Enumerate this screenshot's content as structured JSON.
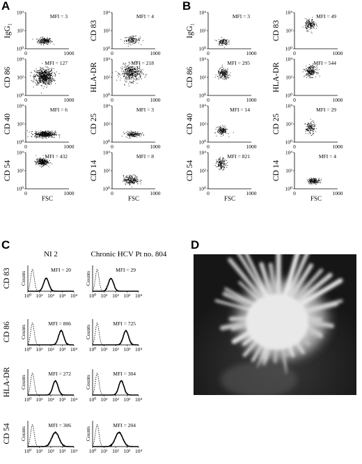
{
  "panel_labels": [
    "A",
    "B",
    "C",
    "D"
  ],
  "chart_data": [
    {
      "type": "scatter",
      "panel": "A",
      "x_ticks": [
        "0",
        "1000"
      ],
      "y_ticks": [
        "10⁰",
        "10²",
        "10⁴"
      ],
      "x_range": [
        0,
        1000
      ],
      "y_range_log10": [
        0,
        4
      ],
      "xlabel": "FSC",
      "subplots": [
        {
          "ylabel": "IgG₁",
          "mfi": "MFI = 3",
          "cloud": {
            "cx": 430,
            "cy": 0.9,
            "sx": 80,
            "sy": 0.18,
            "n": 200
          }
        },
        {
          "ylabel": "CD 83",
          "mfi": "MFI = 4",
          "cloud": {
            "cx": 460,
            "cy": 1.0,
            "sx": 90,
            "sy": 0.2,
            "n": 130
          }
        },
        {
          "ylabel": "CD 86",
          "mfi": "MFI = 127",
          "cloud": {
            "cx": 420,
            "cy": 2.1,
            "sx": 110,
            "sy": 0.45,
            "n": 650
          }
        },
        {
          "ylabel": "HLA-DR",
          "mfi": "MFI = 218",
          "cloud": {
            "cx": 440,
            "cy": 2.5,
            "sx": 120,
            "sy": 0.45,
            "n": 420
          }
        },
        {
          "ylabel": "CD 40",
          "mfi": "MFI = 6",
          "cloud": {
            "cx": 440,
            "cy": 0.9,
            "sx": 120,
            "sy": 0.18,
            "n": 450
          }
        },
        {
          "ylabel": "CD 25",
          "mfi": "MFI = 3",
          "cloud": {
            "cx": 480,
            "cy": 0.9,
            "sx": 90,
            "sy": 0.15,
            "n": 160
          }
        },
        {
          "ylabel": "CD 54",
          "mfi": "MFI = 432",
          "cloud": {
            "cx": 370,
            "cy": 3.0,
            "sx": 70,
            "sy": 0.2,
            "n": 280
          }
        },
        {
          "ylabel": "CD 14",
          "mfi": "MFI = 8",
          "cloud": {
            "cx": 440,
            "cy": 1.0,
            "sx": 90,
            "sy": 0.25,
            "n": 230
          }
        }
      ]
    },
    {
      "type": "scatter",
      "panel": "B",
      "x_ticks": [
        "0",
        "1000"
      ],
      "y_ticks": [
        "10⁰",
        "10²",
        "10⁴"
      ],
      "x_range": [
        0,
        1000
      ],
      "y_range_log10": [
        0,
        4
      ],
      "xlabel": "FSC",
      "subplots": [
        {
          "ylabel": "IgG₁",
          "mfi": "MFI = 3",
          "cloud": {
            "cx": 330,
            "cy": 0.8,
            "sx": 60,
            "sy": 0.2,
            "n": 110
          }
        },
        {
          "ylabel": "CD 83",
          "mfi": "MFI = 49",
          "cloud": {
            "cx": 360,
            "cy": 2.7,
            "sx": 60,
            "sy": 0.3,
            "n": 170
          }
        },
        {
          "ylabel": "CD 86",
          "mfi": "MFI = 295",
          "cloud": {
            "cx": 350,
            "cy": 2.4,
            "sx": 70,
            "sy": 0.3,
            "n": 200
          }
        },
        {
          "ylabel": "HLA-DR",
          "mfi": "MFI = 544",
          "cloud": {
            "cx": 370,
            "cy": 2.7,
            "sx": 65,
            "sy": 0.3,
            "n": 230
          }
        },
        {
          "ylabel": "CD 40",
          "mfi": "MFI = 14",
          "cloud": {
            "cx": 320,
            "cy": 1.3,
            "sx": 60,
            "sy": 0.22,
            "n": 160
          }
        },
        {
          "ylabel": "CD 25",
          "mfi": "MFI = 29",
          "cloud": {
            "cx": 360,
            "cy": 1.6,
            "sx": 55,
            "sy": 0.35,
            "n": 140
          }
        },
        {
          "ylabel": "CD 54",
          "mfi": "MFI = 821",
          "cloud": {
            "cx": 300,
            "cy": 2.8,
            "sx": 55,
            "sy": 0.3,
            "n": 150
          }
        },
        {
          "ylabel": "CD 14",
          "mfi": "MFI = 4",
          "cloud": {
            "cx": 440,
            "cy": 0.9,
            "sx": 70,
            "sy": 0.15,
            "n": 180
          }
        }
      ]
    },
    {
      "type": "line",
      "panel": "C",
      "x_ticks": [
        "10⁰",
        "10¹",
        "10²",
        "10³",
        "10⁴"
      ],
      "x_range_log10": [
        0,
        4
      ],
      "ylabel": "Counts",
      "columns": [
        "NI 2",
        "Chronic HCV Pt no. 804"
      ],
      "rows": [
        {
          "marker": "CD 83",
          "mfi": [
            "MFI = 20",
            "MFI = 29"
          ],
          "control_peak_log10": [
            0.4,
            0.4
          ],
          "stained_peak_log10": [
            1.6,
            1.6
          ]
        },
        {
          "marker": "CD 86",
          "mfi": [
            "MFI = 806",
            "MFI = 725"
          ],
          "control_peak_log10": [
            0.4,
            0.4
          ],
          "stained_peak_log10": [
            2.9,
            2.9
          ]
        },
        {
          "marker": "HLA-DR",
          "mfi": [
            "MFI = 272",
            "MFI = 304"
          ],
          "control_peak_log10": [
            0.4,
            0.4
          ],
          "stained_peak_log10": [
            2.4,
            2.5
          ]
        },
        {
          "marker": "CD 54",
          "mfi": [
            "MFI = 306",
            "MFI = 204"
          ],
          "control_peak_log10": [
            0.4,
            0.4
          ],
          "stained_peak_log10": [
            2.4,
            2.3
          ]
        }
      ]
    }
  ]
}
